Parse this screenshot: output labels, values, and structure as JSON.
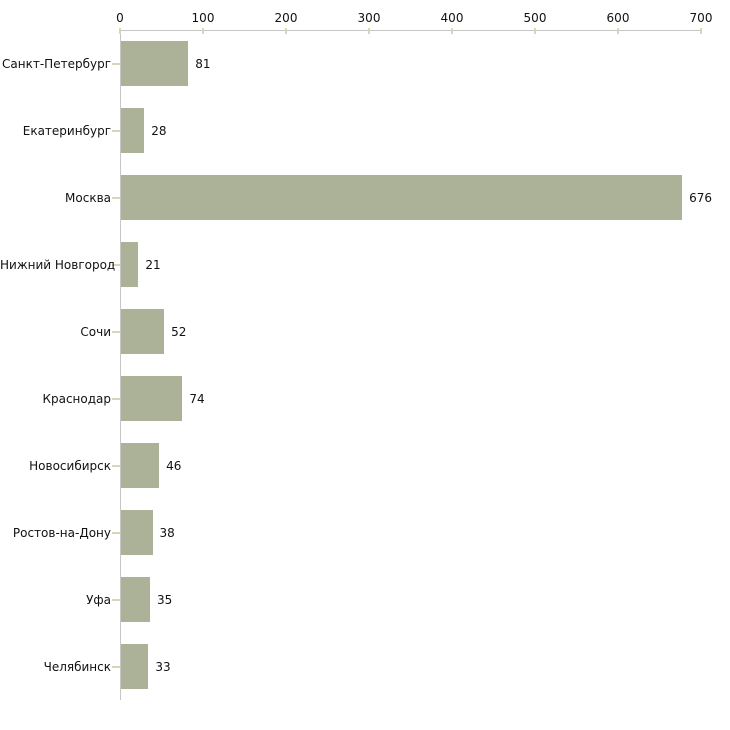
{
  "chart_data": {
    "type": "bar",
    "orientation": "horizontal",
    "title": "",
    "xlabel": "",
    "ylabel": "",
    "categories": [
      "Санкт-Петербург",
      "Екатеринбург",
      "Москва",
      "Нижний Новгород",
      "Сочи",
      "Краснодар",
      "Новосибирск",
      "Ростов-на-Дону",
      "Уфа",
      "Челябинск"
    ],
    "values": [
      81,
      28,
      676,
      21,
      52,
      74,
      46,
      38,
      35,
      33
    ],
    "value_labels_shown": true,
    "xlim": [
      0,
      700
    ],
    "x_ticks": [
      0,
      100,
      200,
      300,
      400,
      500,
      600,
      700
    ],
    "x_tick_labels": [
      "0",
      "100",
      "200",
      "300",
      "400",
      "500",
      "600",
      "700"
    ],
    "grid": false,
    "legend": "none",
    "colors": {
      "bar_fill": "#abb298",
      "axis_line": "#c6c6c6",
      "tick_mark": "#d9d5b5",
      "text": "#111111",
      "background": "#ffffff"
    }
  }
}
